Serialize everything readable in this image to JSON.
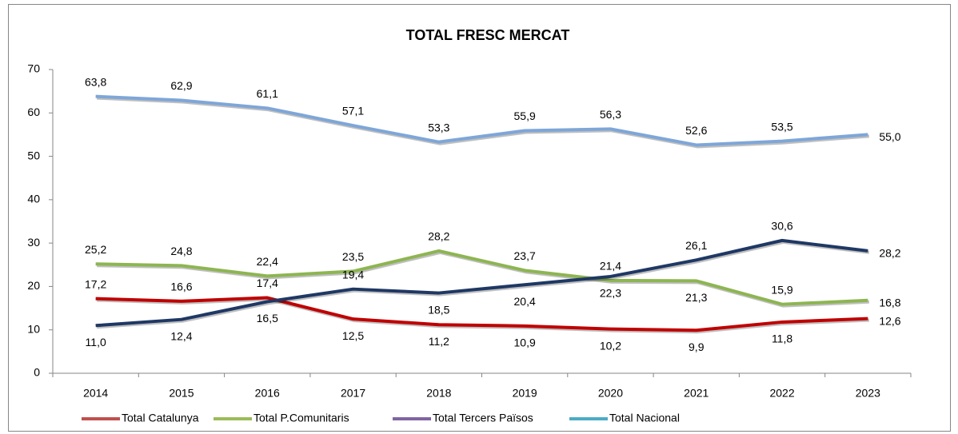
{
  "chart_data": {
    "type": "line",
    "title": "TOTAL FRESC MERCAT",
    "categories": [
      "2014",
      "2015",
      "2016",
      "2017",
      "2018",
      "2019",
      "2020",
      "2021",
      "2022",
      "2023"
    ],
    "ylim": [
      0,
      70
    ],
    "yticks": [
      0,
      10,
      20,
      30,
      40,
      50,
      60,
      70
    ],
    "grid": false,
    "legend": "bottom",
    "series": [
      {
        "name": "Total Catalunya",
        "color": "#c00000",
        "legend_color": "#c0504d",
        "values": [
          17.2,
          16.6,
          17.4,
          12.5,
          11.2,
          10.9,
          10.2,
          9.9,
          11.8,
          12.6
        ],
        "value_labels": [
          "17,2",
          "16,6",
          "17,4",
          "12,5",
          "11,2",
          "10,9",
          "10,2",
          "9,9",
          "11,8",
          "12,6"
        ]
      },
      {
        "name": "Total P.Comunitaris",
        "color": "#8db551",
        "legend_color": "#9bbb59",
        "values": [
          25.2,
          24.8,
          22.4,
          23.5,
          28.2,
          23.7,
          21.4,
          21.3,
          15.9,
          16.8
        ],
        "value_labels": [
          "25,2",
          "24,8",
          "22,4",
          "23,5",
          "28,2",
          "23,7",
          "21,4",
          "21,3",
          "15,9",
          "16,8"
        ]
      },
      {
        "name": "Total Tercers Països",
        "color": "#1f3864",
        "legend_color": "#8064a2",
        "values": [
          11.0,
          12.4,
          16.5,
          19.4,
          18.5,
          20.4,
          22.3,
          26.1,
          30.6,
          28.2
        ],
        "value_labels": [
          "11,0",
          "12,4",
          "16,5",
          "19,4",
          "18,5",
          "20,4",
          "22,3",
          "26,1",
          "30,6",
          "28,2"
        ]
      },
      {
        "name": "Total Nacional",
        "color": "#7ea6d8",
        "legend_color": "#4bacc6",
        "values": [
          63.8,
          62.9,
          61.1,
          57.1,
          53.3,
          55.9,
          56.3,
          52.6,
          53.5,
          55.0
        ],
        "value_labels": [
          "63,8",
          "62,9",
          "61,1",
          "57,1",
          "53,3",
          "55,9",
          "56,3",
          "52,6",
          "53,5",
          "55,0"
        ]
      }
    ]
  }
}
